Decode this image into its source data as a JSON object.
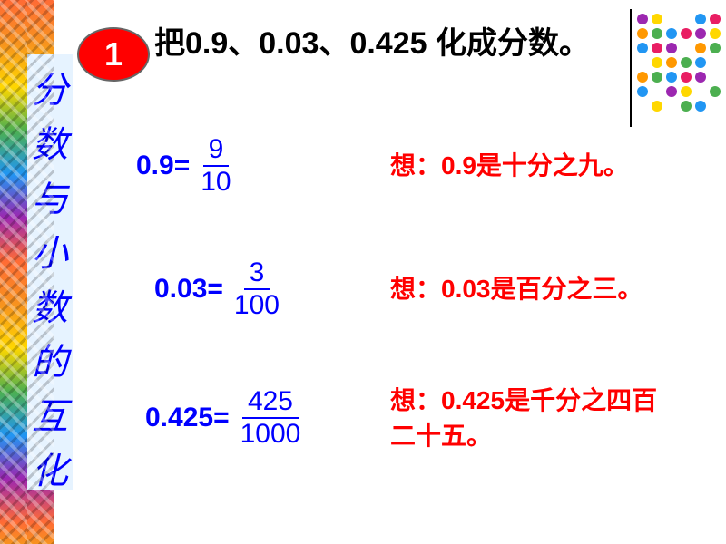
{
  "sidebar": {
    "title_chars": [
      "分",
      "数",
      "与",
      "小",
      "数",
      "的",
      "互",
      "化"
    ],
    "bg_color": "#e6f3ff",
    "text_color": "#0000ff"
  },
  "badge": {
    "number": "1",
    "bg_color": "#ff0000",
    "text_color": "#ffffff"
  },
  "title": "把0.9、0.03、0.425 化成分数。",
  "rows": [
    {
      "lhs": "0.9=",
      "num": "9",
      "den": "10",
      "hint": "想：0.9是十分之九。"
    },
    {
      "lhs": "0.03=",
      "num": "3",
      "den": "100",
      "hint": "想：0.03是百分之三。"
    },
    {
      "lhs": "0.425=",
      "num": "425",
      "den": "1000",
      "hint": "想：0.425是千分之四百二十五。"
    }
  ],
  "colors": {
    "equation": "#0000ff",
    "hint": "#ff0000",
    "title": "#000000"
  },
  "dots": {
    "palette": [
      "#9c27b0",
      "#ffd700",
      "#ff9800",
      "#4caf50",
      "#2196f3",
      "#e91e63"
    ],
    "rows": 7,
    "cols": 6,
    "pattern": [
      [
        1,
        1,
        0,
        0,
        1,
        1
      ],
      [
        1,
        1,
        1,
        1,
        1,
        1
      ],
      [
        1,
        1,
        1,
        0,
        1,
        1
      ],
      [
        0,
        1,
        1,
        1,
        1,
        0
      ],
      [
        1,
        1,
        1,
        1,
        1,
        0
      ],
      [
        1,
        0,
        1,
        1,
        0,
        1
      ],
      [
        0,
        1,
        0,
        1,
        1,
        0
      ]
    ]
  }
}
